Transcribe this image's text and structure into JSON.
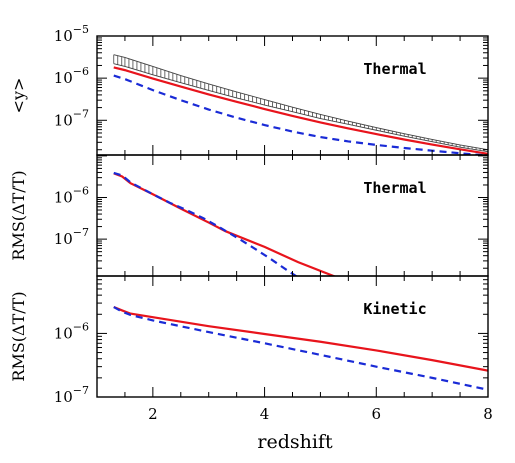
{
  "chart_data": [
    {
      "type": "line",
      "ylabel": "<y>",
      "annotation": "Thermal",
      "yscale": "log",
      "ylim": [
        1.5e-08,
        1e-05
      ],
      "yticks": [
        {
          "value": 1e-05,
          "mant": "10",
          "exp": "−5"
        },
        {
          "value": 1e-06,
          "mant": "10",
          "exp": "−6"
        },
        {
          "value": 1e-07,
          "mant": "10",
          "exp": "−7"
        }
      ],
      "band": {
        "x": [
          1.3,
          1.5,
          2,
          2.5,
          3,
          3.5,
          4,
          4.5,
          5,
          5.5,
          6,
          6.5,
          7,
          7.5,
          8
        ],
        "low": [
          2.2e-06,
          1.9e-06,
          1.2e-06,
          7.8e-07,
          5.1e-07,
          3.4e-07,
          2.3e-07,
          1.6e-07,
          1.1e-07,
          8e-08,
          5.8e-08,
          4.2e-08,
          3.1e-08,
          2.3e-08,
          1.8e-08
        ],
        "high": [
          3.6e-06,
          3.1e-06,
          1.9e-06,
          1.15e-06,
          7.3e-07,
          4.7e-07,
          3.1e-07,
          2.05e-07,
          1.38e-07,
          9.5e-08,
          6.7e-08,
          4.8e-08,
          3.5e-08,
          2.6e-08,
          2e-08
        ]
      },
      "series": [
        {
          "style": "solid",
          "color": "#e8141c",
          "x": [
            1.3,
            1.5,
            2,
            2.5,
            3,
            3.5,
            4,
            4.5,
            5,
            5.5,
            6,
            6.5,
            7,
            7.5,
            8
          ],
          "y": [
            1.8e-06,
            1.55e-06,
            9.8e-07,
            6.3e-07,
            4.1e-07,
            2.75e-07,
            1.85e-07,
            1.27e-07,
            8.9e-08,
            6.4e-08,
            4.7e-08,
            3.5e-08,
            2.65e-08,
            2.05e-08,
            1.6e-08
          ]
        },
        {
          "style": "dashed",
          "color": "#1a2bd6",
          "x": [
            1.3,
            1.5,
            2,
            2.5,
            3,
            3.5,
            4,
            4.5,
            5,
            5.5,
            6,
            6.5,
            7,
            7.5,
            8
          ],
          "y": [
            1.15e-06,
            9.5e-07,
            5.2e-07,
            3e-07,
            1.8e-07,
            1.15e-07,
            7.7e-08,
            5.4e-08,
            4e-08,
            3.15e-08,
            2.6e-08,
            2.2e-08,
            1.9e-08,
            1.65e-08,
            1.45e-08
          ]
        }
      ]
    },
    {
      "type": "line",
      "ylabel": "RMS(ΔT/T)",
      "annotation": "Thermal",
      "yscale": "log",
      "ylim": [
        1.3e-08,
        1.05e-05
      ],
      "yticks": [
        {
          "value": 1e-06,
          "mant": "10",
          "exp": "−6"
        },
        {
          "value": 1e-07,
          "mant": "10",
          "exp": "−7"
        }
      ],
      "series": [
        {
          "style": "solid",
          "color": "#e8141c",
          "x": [
            1.3,
            1.45,
            1.6,
            2.0,
            2.5,
            3.0,
            3.3,
            4.0,
            4.6,
            5.3
          ],
          "y": [
            3.8e-06,
            3.2e-06,
            2.2e-06,
            1.2e-06,
            5.4e-07,
            2.5e-07,
            1.55e-07,
            6.5e-08,
            2.8e-08,
            1.2e-08
          ]
        },
        {
          "style": "dashed",
          "color": "#1a2bd6",
          "x": [
            1.3,
            1.45,
            1.6,
            2.0,
            2.3,
            2.6,
            2.9,
            3.2,
            3.5,
            3.8,
            4.1,
            4.4,
            4.6
          ],
          "y": [
            3.9e-06,
            3.4e-06,
            2.3e-06,
            1.2e-06,
            7.5e-07,
            5e-07,
            3.2e-07,
            1.9e-07,
            1.1e-07,
            6.2e-08,
            3.4e-08,
            1.8e-08,
            1.2e-08
          ]
        }
      ]
    },
    {
      "type": "line",
      "ylabel": "RMS(ΔT/T)",
      "annotation": "Kinetic",
      "yscale": "log",
      "ylim": [
        1e-07,
        8e-06
      ],
      "yticks": [
        {
          "value": 1e-06,
          "mant": "10",
          "exp": "−6"
        },
        {
          "value": 1e-07,
          "mant": "10",
          "exp": "−7"
        }
      ],
      "series": [
        {
          "style": "solid",
          "color": "#e8141c",
          "x": [
            1.3,
            1.45,
            1.6,
            2.0,
            3.0,
            4.0,
            5.0,
            6.0,
            7.0,
            8.0
          ],
          "y": [
            2.6e-06,
            2.3e-06,
            2.05e-06,
            1.8e-06,
            1.3e-06,
            9.8e-07,
            7.4e-07,
            5.4e-07,
            3.8e-07,
            2.6e-07
          ]
        },
        {
          "style": "dashed",
          "color": "#1a2bd6",
          "x": [
            1.3,
            1.45,
            1.6,
            2.0,
            3.0,
            4.0,
            5.0,
            6.0,
            7.0,
            8.0
          ],
          "y": [
            2.6e-06,
            2.2e-06,
            1.95e-06,
            1.6e-06,
            1.05e-06,
            7e-07,
            4.6e-07,
            3e-07,
            2e-07,
            1.3e-07
          ]
        }
      ]
    }
  ],
  "x_axis": {
    "label": "redshift",
    "xlim": [
      1.0,
      8.0
    ],
    "ticks": [
      {
        "value": 2,
        "label": "2"
      },
      {
        "value": 4,
        "label": "4"
      },
      {
        "value": 6,
        "label": "6"
      },
      {
        "value": 8,
        "label": "8"
      }
    ]
  }
}
